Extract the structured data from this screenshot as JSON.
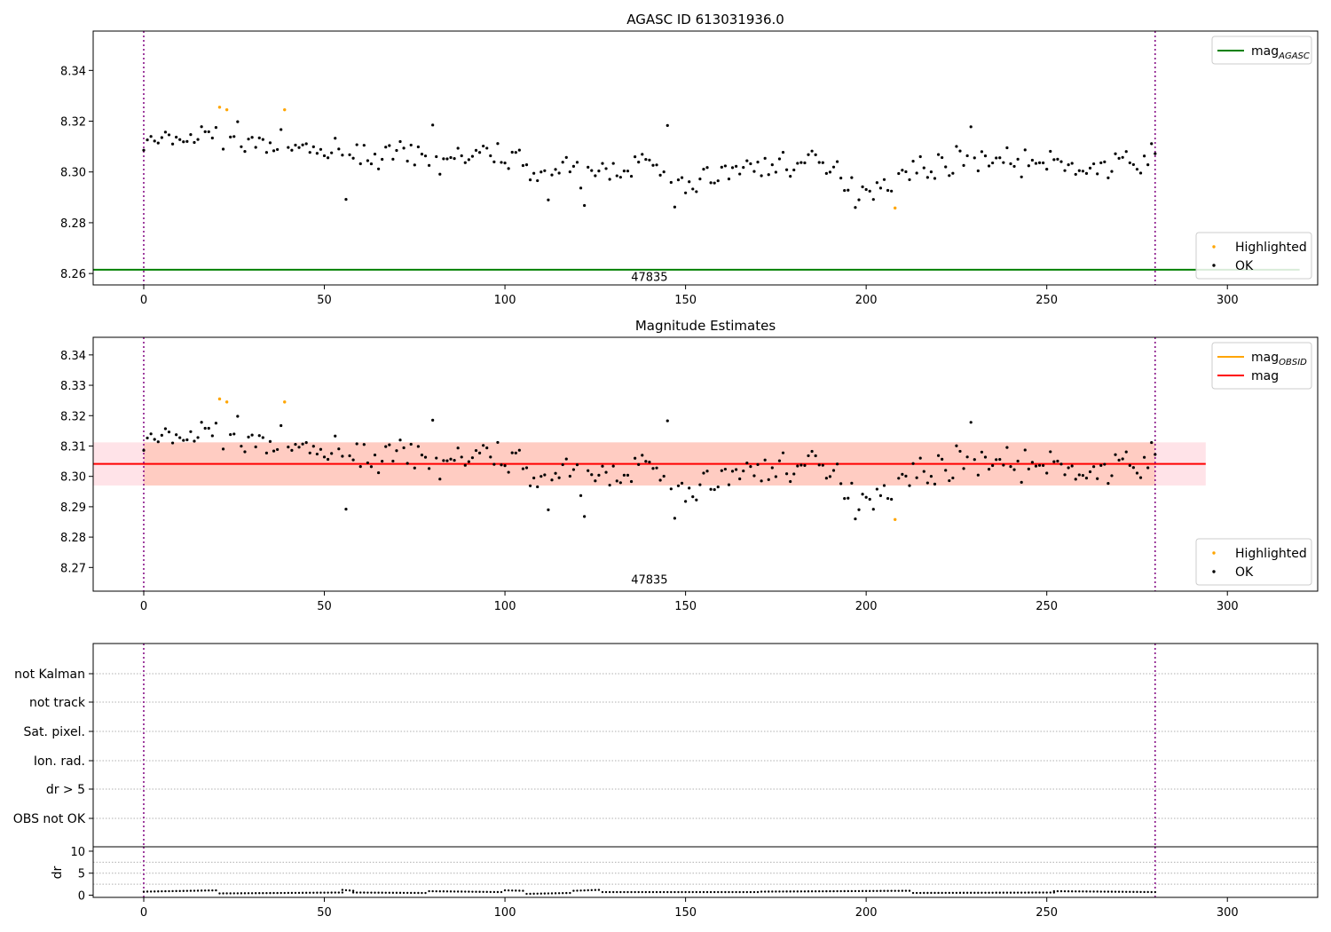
{
  "colors": {
    "agasc_line": "#008000",
    "mag_line": "#ff0000",
    "obsid_line": "#ffa500",
    "highlighted": "#ffa500",
    "ok": "#000000",
    "band_outer": "#ffc0cb",
    "band_inner": "#ffa07a",
    "marker_line": "#800080"
  },
  "flag_labels": [
    "not Kalman",
    "not track",
    "Sat. pixel.",
    "Ion. rad.",
    "dr > 5",
    "OBS not OK"
  ],
  "chart_data": [
    {
      "type": "scatter",
      "title": "AGASC ID 613031936.0",
      "xlim": [
        -14,
        325
      ],
      "ylim": [
        8.2555,
        8.3555
      ],
      "xticks": [
        0,
        50,
        100,
        150,
        200,
        250,
        300
      ],
      "yticks": [
        8.26,
        8.28,
        8.3,
        8.32,
        8.34
      ],
      "hlines": [
        {
          "y": 8.2615,
          "color": "#008000",
          "x_range": [
            -14,
            320
          ]
        }
      ],
      "vlines": [
        0,
        280
      ],
      "annotation": {
        "text": "47835",
        "x": 140,
        "y": 8.2585
      },
      "legends": [
        {
          "position": "upper-right",
          "entries": [
            {
              "label": "mag",
              "sub": "AGASC",
              "kind": "line",
              "color": "#008000"
            }
          ]
        },
        {
          "position": "lower-right",
          "entries": [
            {
              "label": "Highlighted",
              "kind": "dot",
              "color": "#ffa500"
            },
            {
              "label": "OK",
              "kind": "dot",
              "color": "#000000"
            }
          ]
        }
      ],
      "highlighted_points": [
        [
          21,
          8.3255
        ],
        [
          23,
          8.3245
        ],
        [
          39,
          8.3245
        ],
        [
          208,
          8.2858
        ]
      ]
    },
    {
      "type": "scatter",
      "title": "Magnitude Estimates",
      "xlim": [
        -14,
        325
      ],
      "ylim": [
        8.2622,
        8.3458
      ],
      "xticks": [
        0,
        50,
        100,
        150,
        200,
        250,
        300
      ],
      "yticks": [
        8.27,
        8.28,
        8.29,
        8.3,
        8.31,
        8.32,
        8.33,
        8.34
      ],
      "band_outer": [
        8.297,
        8.3112
      ],
      "band_inner": [
        8.297,
        8.3112
      ],
      "band_inner_x": [
        0,
        280
      ],
      "band_x": [
        -14,
        294
      ],
      "hlines": [
        {
          "y": 8.3041,
          "color": "#ff0000",
          "x_range": [
            -14,
            294
          ]
        }
      ],
      "vlines": [
        0,
        280
      ],
      "annotation": {
        "text": "47835",
        "x": 140,
        "y": 8.2658
      },
      "legends": [
        {
          "position": "upper-right",
          "entries": [
            {
              "label": "mag",
              "sub": "OBSID",
              "kind": "line",
              "color": "#ffa500"
            },
            {
              "label": "mag",
              "kind": "line",
              "color": "#ff0000"
            }
          ]
        },
        {
          "position": "lower-right",
          "entries": [
            {
              "label": "Highlighted",
              "kind": "dot",
              "color": "#ffa500"
            },
            {
              "label": "OK",
              "kind": "dot",
              "color": "#000000"
            }
          ]
        }
      ],
      "highlighted_points": [
        [
          21,
          8.3255
        ],
        [
          23,
          8.3245
        ],
        [
          39,
          8.3245
        ],
        [
          208,
          8.2858
        ]
      ]
    },
    {
      "type": "scatter",
      "title": "",
      "xlim": [
        -14,
        325
      ],
      "categories": [
        "not Kalman",
        "not track",
        "Sat. pixel.",
        "Ion. rad.",
        "dr > 5",
        "OBS not OK"
      ],
      "vlines": [
        0,
        280
      ]
    },
    {
      "type": "scatter",
      "title": "",
      "ylabel": "dr",
      "xlim": [
        -14,
        325
      ],
      "ylim": [
        -0.5,
        11
      ],
      "xticks": [
        0,
        50,
        100,
        150,
        200,
        250,
        300
      ],
      "yticks": [
        0,
        5,
        10
      ],
      "vlines": [
        0,
        280
      ],
      "dr_segments": [
        [
          0,
          20,
          0.8,
          1.1
        ],
        [
          21,
          55,
          0.4,
          0.6
        ],
        [
          55,
          58,
          1.2,
          1.0
        ],
        [
          58,
          78,
          0.6,
          0.5
        ],
        [
          79,
          99,
          0.9,
          0.7
        ],
        [
          100,
          105,
          1.1,
          1.0
        ],
        [
          106,
          118,
          0.3,
          0.5
        ],
        [
          119,
          126,
          1.0,
          1.2
        ],
        [
          127,
          170,
          0.7,
          0.7
        ],
        [
          171,
          212,
          0.8,
          1.0
        ],
        [
          213,
          252,
          0.5,
          0.6
        ],
        [
          252,
          280,
          0.9,
          0.7
        ]
      ]
    }
  ]
}
